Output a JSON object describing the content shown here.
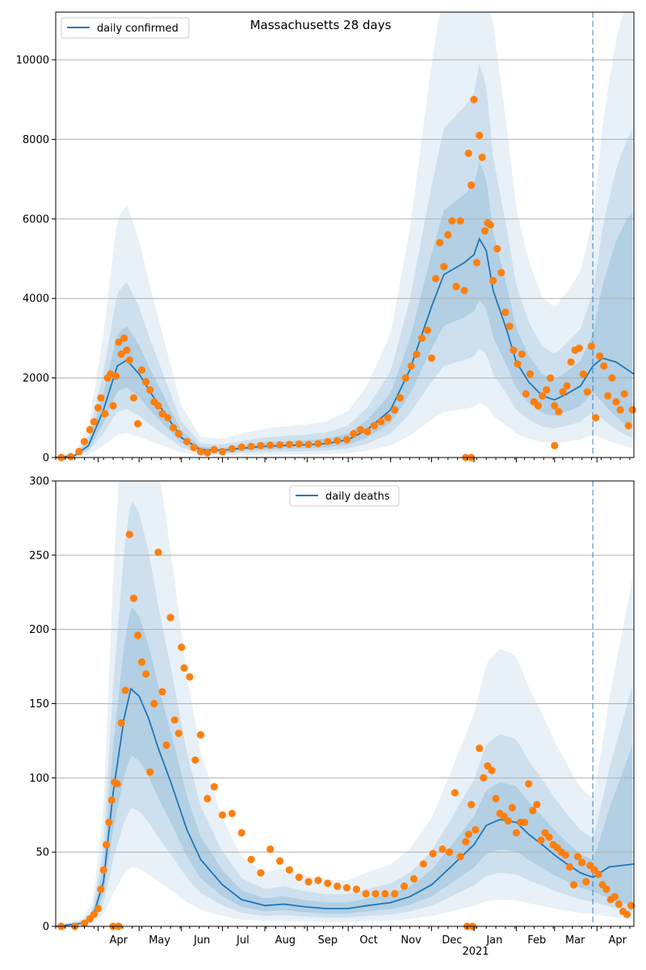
{
  "colors": {
    "line": "#1f77b4",
    "points": "#ff7f0e",
    "band": "#1f77b4",
    "grid": "#b0b0b0",
    "marker_line": "#1f77b4"
  },
  "chart_data": [
    {
      "type": "line",
      "title": "Massachusetts 28 days",
      "legend": {
        "label": "daily confirmed",
        "placement": "top-left"
      },
      "xlabel": "",
      "ylabel": "",
      "x_start": "2020-03-01",
      "x_end": "2021-04-28",
      "ylim": [
        0,
        11200
      ],
      "yticks": [
        0,
        2000,
        4000,
        6000,
        8000,
        10000
      ],
      "grid": true,
      "vline_date": "2021-03-29",
      "series": [
        {
          "name": "daily confirmed",
          "x": [
            "2020-03-01",
            "2020-03-15",
            "2020-03-25",
            "2020-04-05",
            "2020-04-15",
            "2020-04-22",
            "2020-05-01",
            "2020-05-10",
            "2020-05-20",
            "2020-06-01",
            "2020-06-15",
            "2020-07-01",
            "2020-07-15",
            "2020-08-01",
            "2020-08-15",
            "2020-09-01",
            "2020-09-15",
            "2020-10-01",
            "2020-10-15",
            "2020-11-01",
            "2020-11-15",
            "2020-12-01",
            "2020-12-10",
            "2020-12-20",
            "2020-12-25",
            "2021-01-01",
            "2021-01-05",
            "2021-01-10",
            "2021-01-15",
            "2021-01-25",
            "2021-02-01",
            "2021-02-10",
            "2021-02-20",
            "2021-03-01",
            "2021-03-10",
            "2021-03-20",
            "2021-03-29",
            "2021-04-05",
            "2021-04-15",
            "2021-04-28"
          ],
          "values": [
            0,
            50,
            300,
            1200,
            2300,
            2450,
            2100,
            1600,
            1100,
            500,
            200,
            180,
            230,
            280,
            300,
            320,
            350,
            450,
            700,
            1200,
            2200,
            3800,
            4600,
            4800,
            4900,
            5100,
            5500,
            5200,
            4200,
            3200,
            2400,
            1900,
            1550,
            1450,
            1600,
            1800,
            2300,
            2500,
            2400,
            2100
          ]
        }
      ],
      "points": {
        "x": [
          "2020-03-05",
          "2020-03-12",
          "2020-03-18",
          "2020-03-22",
          "2020-03-26",
          "2020-03-29",
          "2020-04-01",
          "2020-04-03",
          "2020-04-06",
          "2020-04-08",
          "2020-04-10",
          "2020-04-12",
          "2020-04-14",
          "2020-04-16",
          "2020-04-18",
          "2020-04-20",
          "2020-04-22",
          "2020-04-24",
          "2020-04-27",
          "2020-04-30",
          "2020-05-03",
          "2020-05-06",
          "2020-05-09",
          "2020-05-12",
          "2020-05-15",
          "2020-05-18",
          "2020-05-22",
          "2020-05-26",
          "2020-05-30",
          "2020-06-05",
          "2020-06-10",
          "2020-06-15",
          "2020-06-20",
          "2020-06-25",
          "2020-07-01",
          "2020-07-08",
          "2020-07-15",
          "2020-07-22",
          "2020-07-29",
          "2020-08-05",
          "2020-08-12",
          "2020-08-19",
          "2020-08-26",
          "2020-09-02",
          "2020-09-09",
          "2020-09-16",
          "2020-09-23",
          "2020-09-30",
          "2020-10-05",
          "2020-10-10",
          "2020-10-15",
          "2020-10-20",
          "2020-10-25",
          "2020-10-30",
          "2020-11-04",
          "2020-11-08",
          "2020-11-12",
          "2020-11-16",
          "2020-11-20",
          "2020-11-24",
          "2020-11-28",
          "2020-12-01",
          "2020-12-04",
          "2020-12-07",
          "2020-12-10",
          "2020-12-13",
          "2020-12-16",
          "2020-12-19",
          "2020-12-22",
          "2020-12-25",
          "2020-12-28",
          "2020-12-30",
          "2021-01-01",
          "2021-01-03",
          "2021-01-05",
          "2021-01-07",
          "2021-01-09",
          "2021-01-11",
          "2021-01-13",
          "2021-01-15",
          "2021-01-18",
          "2021-01-21",
          "2021-01-24",
          "2021-01-27",
          "2021-01-30",
          "2021-02-02",
          "2021-02-05",
          "2021-02-08",
          "2021-02-11",
          "2021-02-14",
          "2021-02-17",
          "2021-02-20",
          "2021-02-23",
          "2021-02-26",
          "2021-03-01",
          "2021-03-04",
          "2021-03-07",
          "2021-03-10",
          "2021-03-13",
          "2021-03-16",
          "2021-03-19",
          "2021-03-22",
          "2021-03-25",
          "2021-03-28",
          "2021-03-31",
          "2021-04-03",
          "2021-04-06",
          "2021-04-09",
          "2021-04-12",
          "2021-04-15",
          "2021-04-18",
          "2021-04-21",
          "2021-04-24",
          "2021-04-27",
          "2020-12-26",
          "2020-12-30",
          "2021-03-01"
        ],
        "values": [
          0,
          20,
          150,
          400,
          700,
          900,
          1250,
          1500,
          1100,
          2000,
          2100,
          1300,
          2050,
          2900,
          2600,
          3000,
          2700,
          2450,
          1500,
          850,
          2200,
          1900,
          1700,
          1400,
          1300,
          1100,
          1000,
          750,
          600,
          400,
          250,
          150,
          120,
          200,
          150,
          220,
          260,
          280,
          300,
          310,
          320,
          330,
          340,
          330,
          350,
          400,
          420,
          450,
          600,
          700,
          650,
          800,
          900,
          1000,
          1200,
          1500,
          2000,
          2300,
          2600,
          3000,
          3200,
          2500,
          4500,
          5400,
          4800,
          5600,
          5950,
          4300,
          5950,
          4200,
          7650,
          6850,
          9000,
          4900,
          8100,
          7550,
          5700,
          5900,
          5850,
          4450,
          5250,
          4650,
          3650,
          3300,
          2700,
          2350,
          2600,
          1600,
          2100,
          1400,
          1300,
          1550,
          1700,
          2000,
          1300,
          1150,
          1650,
          1800,
          2400,
          2700,
          2750,
          2100,
          1650,
          2800,
          1000,
          2550,
          2300,
          1550,
          2000,
          1400,
          1200,
          1600,
          800,
          1200,
          0,
          0,
          300
        ]
      }
    },
    {
      "type": "line",
      "title": "",
      "legend": {
        "label": "daily deaths",
        "placement": "top-center"
      },
      "xlabel": "",
      "ylabel": "",
      "x_start": "2020-03-01",
      "x_end": "2021-04-28",
      "ylim": [
        0,
        300
      ],
      "yticks": [
        0,
        50,
        100,
        150,
        200,
        250,
        300
      ],
      "grid": true,
      "vline_date": "2021-03-29",
      "xtick_labels": [
        "Apr",
        "May",
        "Jun",
        "Jul",
        "Aug",
        "Sep",
        "Oct",
        "Nov",
        "Dec",
        "Jan",
        "Feb",
        "Mar",
        "Apr"
      ],
      "xtick_dates": [
        "2020-04-01",
        "2020-05-01",
        "2020-06-01",
        "2020-07-01",
        "2020-08-01",
        "2020-09-01",
        "2020-10-01",
        "2020-11-01",
        "2020-12-01",
        "2021-01-01",
        "2021-02-01",
        "2021-03-01",
        "2021-04-01"
      ],
      "year_label": "2021",
      "series": [
        {
          "name": "daily deaths",
          "x": [
            "2020-03-01",
            "2020-03-20",
            "2020-03-28",
            "2020-04-05",
            "2020-04-12",
            "2020-04-20",
            "2020-04-25",
            "2020-05-01",
            "2020-05-08",
            "2020-05-15",
            "2020-05-25",
            "2020-06-05",
            "2020-06-15",
            "2020-07-01",
            "2020-07-15",
            "2020-08-01",
            "2020-08-15",
            "2020-09-01",
            "2020-09-15",
            "2020-10-01",
            "2020-10-15",
            "2020-11-01",
            "2020-11-15",
            "2020-12-01",
            "2020-12-15",
            "2021-01-01",
            "2021-01-10",
            "2021-01-20",
            "2021-02-01",
            "2021-02-10",
            "2021-02-20",
            "2021-03-01",
            "2021-03-10",
            "2021-03-20",
            "2021-03-29",
            "2021-04-10",
            "2021-04-28"
          ],
          "values": [
            0,
            2,
            6,
            30,
            90,
            140,
            160,
            155,
            140,
            120,
            95,
            65,
            45,
            28,
            18,
            14,
            15,
            13,
            12,
            12,
            14,
            16,
            20,
            28,
            40,
            55,
            68,
            72,
            70,
            62,
            55,
            48,
            42,
            36,
            33,
            40,
            42
          ]
        }
      ],
      "points": {
        "x": [
          "2020-03-05",
          "2020-03-15",
          "2020-03-22",
          "2020-03-26",
          "2020-03-29",
          "2020-04-01",
          "2020-04-03",
          "2020-04-05",
          "2020-04-07",
          "2020-04-09",
          "2020-04-11",
          "2020-04-13",
          "2020-04-15",
          "2020-04-18",
          "2020-04-21",
          "2020-04-24",
          "2020-04-27",
          "2020-04-30",
          "2020-05-03",
          "2020-05-06",
          "2020-05-09",
          "2020-05-12",
          "2020-05-15",
          "2020-05-18",
          "2020-05-21",
          "2020-05-24",
          "2020-05-27",
          "2020-05-30",
          "2020-06-03",
          "2020-06-07",
          "2020-06-11",
          "2020-06-15",
          "2020-06-20",
          "2020-06-25",
          "2020-07-01",
          "2020-07-08",
          "2020-07-15",
          "2020-07-22",
          "2020-07-29",
          "2020-08-05",
          "2020-08-12",
          "2020-08-19",
          "2020-08-26",
          "2020-09-02",
          "2020-09-09",
          "2020-09-16",
          "2020-09-23",
          "2020-09-30",
          "2020-10-07",
          "2020-10-14",
          "2020-10-21",
          "2020-10-28",
          "2020-11-04",
          "2020-11-11",
          "2020-11-18",
          "2020-11-25",
          "2020-12-02",
          "2020-12-09",
          "2020-12-14",
          "2020-12-18",
          "2020-12-22",
          "2020-12-26",
          "2020-12-28",
          "2020-12-30",
          "2021-01-02",
          "2021-01-05",
          "2021-01-08",
          "2021-01-11",
          "2021-01-14",
          "2021-01-17",
          "2021-01-20",
          "2021-01-23",
          "2021-01-26",
          "2021-01-29",
          "2021-02-01",
          "2021-02-04",
          "2021-02-07",
          "2021-02-10",
          "2021-02-13",
          "2021-02-16",
          "2021-02-19",
          "2021-02-22",
          "2021-02-25",
          "2021-02-28",
          "2021-03-03",
          "2021-03-06",
          "2021-03-09",
          "2021-03-12",
          "2021-03-15",
          "2021-03-18",
          "2021-03-21",
          "2021-03-24",
          "2021-03-27",
          "2021-03-30",
          "2021-04-02",
          "2021-04-05",
          "2021-04-08",
          "2021-04-11",
          "2021-04-14",
          "2021-04-17",
          "2021-04-20",
          "2021-04-23",
          "2021-04-26",
          "2020-04-12",
          "2020-04-16",
          "2020-06-01",
          "2020-12-27",
          "2020-12-31"
        ],
        "values": [
          0,
          0,
          2,
          5,
          8,
          12,
          25,
          38,
          55,
          70,
          85,
          97,
          96,
          137,
          159,
          264,
          221,
          196,
          178,
          170,
          104,
          150,
          252,
          158,
          122,
          208,
          139,
          130,
          174,
          168,
          112,
          129,
          86,
          94,
          75,
          76,
          63,
          45,
          36,
          52,
          44,
          38,
          33,
          30,
          31,
          29,
          27,
          26,
          25,
          22,
          22,
          22,
          22,
          27,
          32,
          42,
          49,
          52,
          50,
          90,
          47,
          57,
          62,
          82,
          65,
          120,
          100,
          108,
          105,
          86,
          76,
          74,
          71,
          80,
          63,
          70,
          70,
          96,
          78,
          82,
          58,
          63,
          60,
          55,
          53,
          50,
          48,
          40,
          28,
          47,
          43,
          30,
          41,
          38,
          35,
          28,
          25,
          18,
          20,
          15,
          10,
          8,
          14,
          0,
          0,
          188,
          0,
          0
        ]
      }
    }
  ]
}
